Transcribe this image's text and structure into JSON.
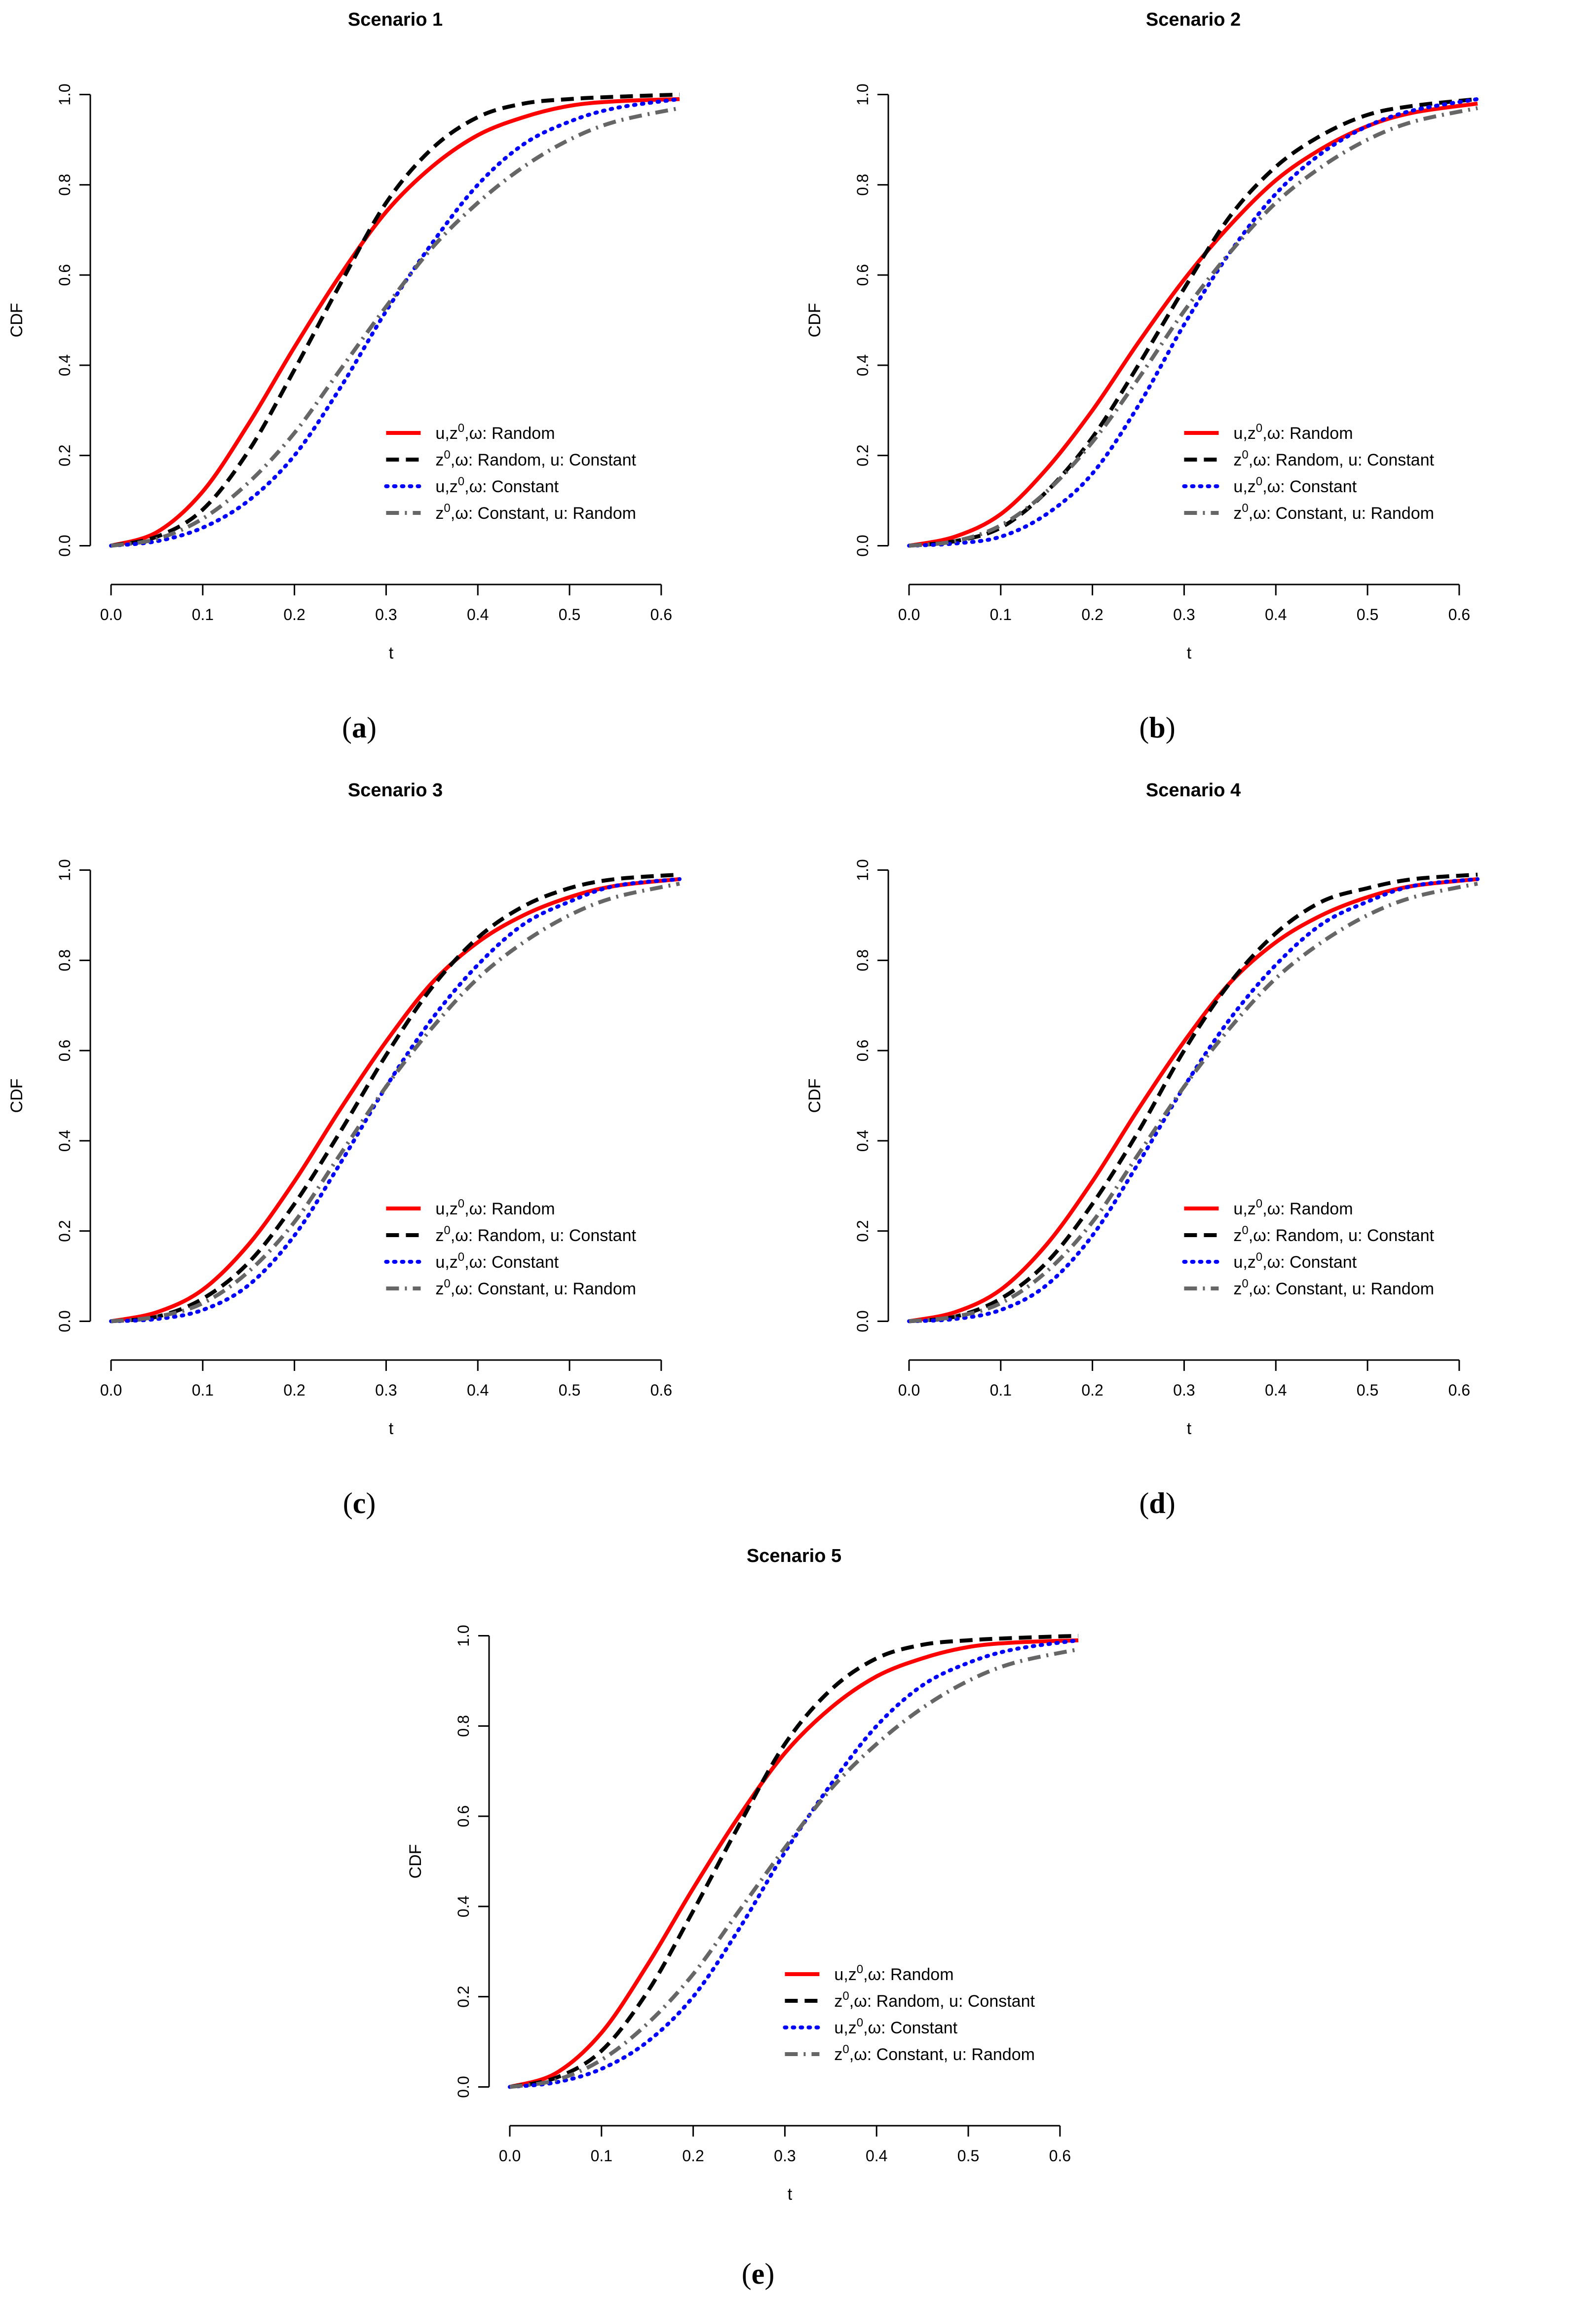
{
  "chart_data": [
    {
      "type": "line",
      "title": "Scenario 1",
      "caption": "a",
      "xlabel": "t",
      "ylabel": "CDF",
      "xlim": [
        0.0,
        0.62
      ],
      "ylim": [
        0.0,
        1.0
      ],
      "xticks": [
        "0.0",
        "0.1",
        "0.2",
        "0.3",
        "0.4",
        "0.5",
        "0.6"
      ],
      "yticks": [
        "0.0",
        "0.2",
        "0.4",
        "0.6",
        "0.8",
        "1.0"
      ],
      "grid": false,
      "legend_position": "right-middle",
      "series": [
        {
          "name": "u,z0,ω: Random",
          "color": "#ff0000",
          "dash": "solid",
          "x": [
            0,
            0.05,
            0.1,
            0.15,
            0.2,
            0.25,
            0.3,
            0.35,
            0.4,
            0.45,
            0.5,
            0.55,
            0.62
          ],
          "y": [
            0,
            0.03,
            0.12,
            0.27,
            0.44,
            0.6,
            0.74,
            0.84,
            0.91,
            0.95,
            0.975,
            0.985,
            0.99
          ]
        },
        {
          "name": "z0,ω: Random, u: Constant",
          "color": "#000000",
          "dash": "dashed",
          "x": [
            0,
            0.05,
            0.1,
            0.15,
            0.2,
            0.25,
            0.3,
            0.35,
            0.4,
            0.45,
            0.5,
            0.55,
            0.62
          ],
          "y": [
            0,
            0.02,
            0.08,
            0.21,
            0.39,
            0.58,
            0.76,
            0.88,
            0.95,
            0.98,
            0.99,
            0.995,
            1.0
          ]
        },
        {
          "name": "u,z0,ω: Constant",
          "color": "#0000ff",
          "dash": "dotted",
          "x": [
            0,
            0.05,
            0.1,
            0.15,
            0.2,
            0.25,
            0.3,
            0.35,
            0.4,
            0.45,
            0.5,
            0.55,
            0.62
          ],
          "y": [
            0,
            0.01,
            0.04,
            0.1,
            0.2,
            0.35,
            0.52,
            0.67,
            0.8,
            0.89,
            0.94,
            0.97,
            0.99
          ]
        },
        {
          "name": "z0,ω: Constant, u: Random",
          "color": "#666666",
          "dash": "dashdot",
          "x": [
            0,
            0.05,
            0.1,
            0.15,
            0.2,
            0.25,
            0.3,
            0.35,
            0.4,
            0.45,
            0.5,
            0.55,
            0.62
          ],
          "y": [
            0,
            0.015,
            0.06,
            0.14,
            0.25,
            0.39,
            0.53,
            0.66,
            0.76,
            0.84,
            0.9,
            0.94,
            0.97
          ]
        }
      ]
    },
    {
      "type": "line",
      "title": "Scenario 2",
      "caption": "b",
      "xlabel": "t",
      "ylabel": "CDF",
      "xlim": [
        0.0,
        0.62
      ],
      "ylim": [
        0.0,
        1.0
      ],
      "xticks": [
        "0.0",
        "0.1",
        "0.2",
        "0.3",
        "0.4",
        "0.5",
        "0.6"
      ],
      "yticks": [
        "0.0",
        "0.2",
        "0.4",
        "0.6",
        "0.8",
        "1.0"
      ],
      "grid": false,
      "legend_position": "right-middle",
      "series": [
        {
          "name": "u,z0,ω: Random",
          "color": "#ff0000",
          "dash": "solid",
          "x": [
            0,
            0.05,
            0.1,
            0.15,
            0.2,
            0.25,
            0.3,
            0.35,
            0.4,
            0.45,
            0.5,
            0.55,
            0.62
          ],
          "y": [
            0,
            0.02,
            0.07,
            0.17,
            0.3,
            0.45,
            0.59,
            0.71,
            0.81,
            0.88,
            0.93,
            0.96,
            0.98
          ]
        },
        {
          "name": "z0,ω: Random, u: Constant",
          "color": "#000000",
          "dash": "dashed",
          "x": [
            0,
            0.05,
            0.1,
            0.15,
            0.2,
            0.25,
            0.3,
            0.35,
            0.4,
            0.45,
            0.5,
            0.55,
            0.62
          ],
          "y": [
            0,
            0.01,
            0.04,
            0.12,
            0.24,
            0.4,
            0.57,
            0.73,
            0.84,
            0.91,
            0.955,
            0.975,
            0.99
          ]
        },
        {
          "name": "u,z0,ω: Constant",
          "color": "#0000ff",
          "dash": "dotted",
          "x": [
            0,
            0.05,
            0.1,
            0.15,
            0.2,
            0.25,
            0.3,
            0.35,
            0.4,
            0.45,
            0.5,
            0.55,
            0.62
          ],
          "y": [
            0,
            0.005,
            0.02,
            0.07,
            0.16,
            0.31,
            0.49,
            0.65,
            0.78,
            0.87,
            0.93,
            0.965,
            0.99
          ]
        },
        {
          "name": "z0,ω: Constant, u: Random",
          "color": "#666666",
          "dash": "dashdot",
          "x": [
            0,
            0.05,
            0.1,
            0.15,
            0.2,
            0.25,
            0.3,
            0.35,
            0.4,
            0.45,
            0.5,
            0.55,
            0.62
          ],
          "y": [
            0,
            0.01,
            0.045,
            0.12,
            0.23,
            0.37,
            0.52,
            0.65,
            0.76,
            0.84,
            0.9,
            0.94,
            0.97
          ]
        }
      ]
    },
    {
      "type": "line",
      "title": "Scenario 3",
      "caption": "c",
      "xlabel": "t",
      "ylabel": "CDF",
      "xlim": [
        0.0,
        0.62
      ],
      "ylim": [
        0.0,
        1.0
      ],
      "xticks": [
        "0.0",
        "0.1",
        "0.2",
        "0.3",
        "0.4",
        "0.5",
        "0.6"
      ],
      "yticks": [
        "0.0",
        "0.2",
        "0.4",
        "0.6",
        "0.8",
        "1.0"
      ],
      "grid": false,
      "legend_position": "right-middle",
      "series": [
        {
          "name": "u,z0,ω: Random",
          "color": "#ff0000",
          "dash": "solid",
          "x": [
            0,
            0.05,
            0.1,
            0.15,
            0.2,
            0.25,
            0.3,
            0.35,
            0.4,
            0.45,
            0.5,
            0.55,
            0.62
          ],
          "y": [
            0,
            0.02,
            0.07,
            0.17,
            0.31,
            0.47,
            0.62,
            0.75,
            0.84,
            0.9,
            0.94,
            0.965,
            0.98
          ]
        },
        {
          "name": "z0,ω: Random, u: Constant",
          "color": "#000000",
          "dash": "dashed",
          "x": [
            0,
            0.05,
            0.1,
            0.15,
            0.2,
            0.25,
            0.3,
            0.35,
            0.4,
            0.45,
            0.5,
            0.55,
            0.62
          ],
          "y": [
            0,
            0.01,
            0.05,
            0.13,
            0.26,
            0.42,
            0.59,
            0.74,
            0.85,
            0.92,
            0.96,
            0.98,
            0.99
          ]
        },
        {
          "name": "u,z0,ω: Constant",
          "color": "#0000ff",
          "dash": "dotted",
          "x": [
            0,
            0.05,
            0.1,
            0.15,
            0.2,
            0.25,
            0.3,
            0.35,
            0.4,
            0.45,
            0.5,
            0.55,
            0.62
          ],
          "y": [
            0,
            0.005,
            0.025,
            0.08,
            0.19,
            0.35,
            0.52,
            0.67,
            0.79,
            0.88,
            0.93,
            0.965,
            0.98
          ]
        },
        {
          "name": "z0,ω: Constant, u: Random",
          "color": "#666666",
          "dash": "dashdot",
          "x": [
            0,
            0.05,
            0.1,
            0.15,
            0.2,
            0.25,
            0.3,
            0.35,
            0.4,
            0.45,
            0.5,
            0.55,
            0.62
          ],
          "y": [
            0,
            0.01,
            0.04,
            0.11,
            0.22,
            0.37,
            0.52,
            0.65,
            0.76,
            0.84,
            0.9,
            0.94,
            0.97
          ]
        }
      ]
    },
    {
      "type": "line",
      "title": "Scenario 4",
      "caption": "d",
      "xlabel": "t",
      "ylabel": "CDF",
      "xlim": [
        0.0,
        0.62
      ],
      "ylim": [
        0.0,
        1.0
      ],
      "xticks": [
        "0.0",
        "0.1",
        "0.2",
        "0.3",
        "0.4",
        "0.5",
        "0.6"
      ],
      "yticks": [
        "0.0",
        "0.2",
        "0.4",
        "0.6",
        "0.8",
        "1.0"
      ],
      "grid": false,
      "legend_position": "right-middle",
      "series": [
        {
          "name": "u,z0,ω: Random",
          "color": "#ff0000",
          "dash": "solid",
          "x": [
            0,
            0.05,
            0.1,
            0.15,
            0.2,
            0.25,
            0.3,
            0.35,
            0.4,
            0.45,
            0.5,
            0.55,
            0.62
          ],
          "y": [
            0,
            0.02,
            0.07,
            0.17,
            0.31,
            0.47,
            0.62,
            0.75,
            0.84,
            0.9,
            0.94,
            0.965,
            0.98
          ]
        },
        {
          "name": "z0,ω: Random, u: Constant",
          "color": "#000000",
          "dash": "dashed",
          "x": [
            0,
            0.05,
            0.1,
            0.15,
            0.2,
            0.25,
            0.3,
            0.35,
            0.4,
            0.45,
            0.5,
            0.55,
            0.62
          ],
          "y": [
            0,
            0.01,
            0.05,
            0.13,
            0.26,
            0.42,
            0.6,
            0.75,
            0.86,
            0.93,
            0.96,
            0.98,
            0.99
          ]
        },
        {
          "name": "u,z0,ω: Constant",
          "color": "#0000ff",
          "dash": "dotted",
          "x": [
            0,
            0.05,
            0.1,
            0.15,
            0.2,
            0.25,
            0.3,
            0.35,
            0.4,
            0.45,
            0.5,
            0.55,
            0.62
          ],
          "y": [
            0,
            0.005,
            0.025,
            0.08,
            0.19,
            0.35,
            0.52,
            0.67,
            0.79,
            0.88,
            0.93,
            0.965,
            0.98
          ]
        },
        {
          "name": "z0,ω: Constant, u: Random",
          "color": "#666666",
          "dash": "dashdot",
          "x": [
            0,
            0.05,
            0.1,
            0.15,
            0.2,
            0.25,
            0.3,
            0.35,
            0.4,
            0.45,
            0.5,
            0.55,
            0.62
          ],
          "y": [
            0,
            0.01,
            0.04,
            0.11,
            0.22,
            0.37,
            0.52,
            0.65,
            0.76,
            0.84,
            0.9,
            0.94,
            0.97
          ]
        }
      ]
    },
    {
      "type": "line",
      "title": "Scenario 5",
      "caption": "e",
      "xlabel": "t",
      "ylabel": "CDF",
      "xlim": [
        0.0,
        0.62
      ],
      "ylim": [
        0.0,
        1.0
      ],
      "xticks": [
        "0.0",
        "0.1",
        "0.2",
        "0.3",
        "0.4",
        "0.5",
        "0.6"
      ],
      "yticks": [
        "0.0",
        "0.2",
        "0.4",
        "0.6",
        "0.8",
        "1.0"
      ],
      "grid": false,
      "legend_position": "right-middle",
      "series": [
        {
          "name": "u,z0,ω: Random",
          "color": "#ff0000",
          "dash": "solid",
          "x": [
            0,
            0.05,
            0.1,
            0.15,
            0.2,
            0.25,
            0.3,
            0.35,
            0.4,
            0.45,
            0.5,
            0.55,
            0.62
          ],
          "y": [
            0,
            0.03,
            0.12,
            0.27,
            0.44,
            0.6,
            0.74,
            0.84,
            0.91,
            0.95,
            0.975,
            0.985,
            0.99
          ]
        },
        {
          "name": "z0,ω: Random, u: Constant",
          "color": "#000000",
          "dash": "dashed",
          "x": [
            0,
            0.05,
            0.1,
            0.15,
            0.2,
            0.25,
            0.3,
            0.35,
            0.4,
            0.45,
            0.5,
            0.55,
            0.62
          ],
          "y": [
            0,
            0.02,
            0.08,
            0.21,
            0.39,
            0.58,
            0.76,
            0.88,
            0.95,
            0.98,
            0.99,
            0.995,
            1.0
          ]
        },
        {
          "name": "u,z0,ω: Constant",
          "color": "#0000ff",
          "dash": "dotted",
          "x": [
            0,
            0.05,
            0.1,
            0.15,
            0.2,
            0.25,
            0.3,
            0.35,
            0.4,
            0.45,
            0.5,
            0.55,
            0.62
          ],
          "y": [
            0,
            0.01,
            0.04,
            0.1,
            0.2,
            0.35,
            0.52,
            0.67,
            0.8,
            0.89,
            0.94,
            0.97,
            0.99
          ]
        },
        {
          "name": "z0,ω: Constant, u: Random",
          "color": "#666666",
          "dash": "dashdot",
          "x": [
            0,
            0.05,
            0.1,
            0.15,
            0.2,
            0.25,
            0.3,
            0.35,
            0.4,
            0.45,
            0.5,
            0.55,
            0.62
          ],
          "y": [
            0,
            0.015,
            0.06,
            0.14,
            0.25,
            0.39,
            0.53,
            0.66,
            0.76,
            0.84,
            0.9,
            0.94,
            0.97
          ]
        }
      ]
    }
  ]
}
